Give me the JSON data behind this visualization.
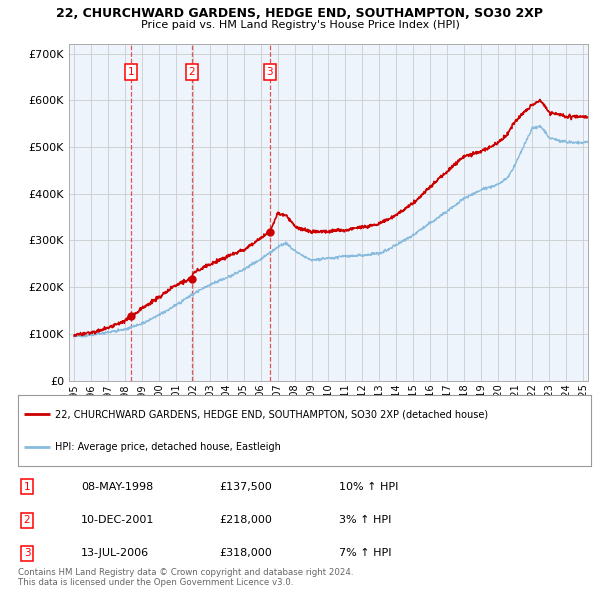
{
  "title1": "22, CHURCHWARD GARDENS, HEDGE END, SOUTHAMPTON, SO30 2XP",
  "title2": "Price paid vs. HM Land Registry's House Price Index (HPI)",
  "ylabel_ticks": [
    "£0",
    "£100K",
    "£200K",
    "£300K",
    "£400K",
    "£500K",
    "£600K",
    "£700K"
  ],
  "ytick_vals": [
    0,
    100000,
    200000,
    300000,
    400000,
    500000,
    600000,
    700000
  ],
  "ylim": [
    0,
    720000
  ],
  "xlim_start": 1994.7,
  "xlim_end": 2025.3,
  "sale_dates": [
    1998.354,
    2001.942,
    2006.535
  ],
  "sale_prices": [
    137500,
    218000,
    318000
  ],
  "sale_labels": [
    "1",
    "2",
    "3"
  ],
  "sale_table": [
    [
      "1",
      "08-MAY-1998",
      "£137,500",
      "10% ↑ HPI"
    ],
    [
      "2",
      "10-DEC-2001",
      "£218,000",
      "3% ↑ HPI"
    ],
    [
      "3",
      "13-JUL-2006",
      "£318,000",
      "7% ↑ HPI"
    ]
  ],
  "legend_line1": "22, CHURCHWARD GARDENS, HEDGE END, SOUTHAMPTON, SO30 2XP (detached house)",
  "legend_line2": "HPI: Average price, detached house, Eastleigh",
  "footer": "Contains HM Land Registry data © Crown copyright and database right 2024.\nThis data is licensed under the Open Government Licence v3.0.",
  "line_color_red": "#cc0000",
  "line_color_blue": "#88bbdd",
  "marker_color": "#cc0000",
  "dashed_color": "#dd4444",
  "background_color": "#ffffff",
  "grid_color": "#cccccc",
  "chart_bg": "#eef4fb"
}
